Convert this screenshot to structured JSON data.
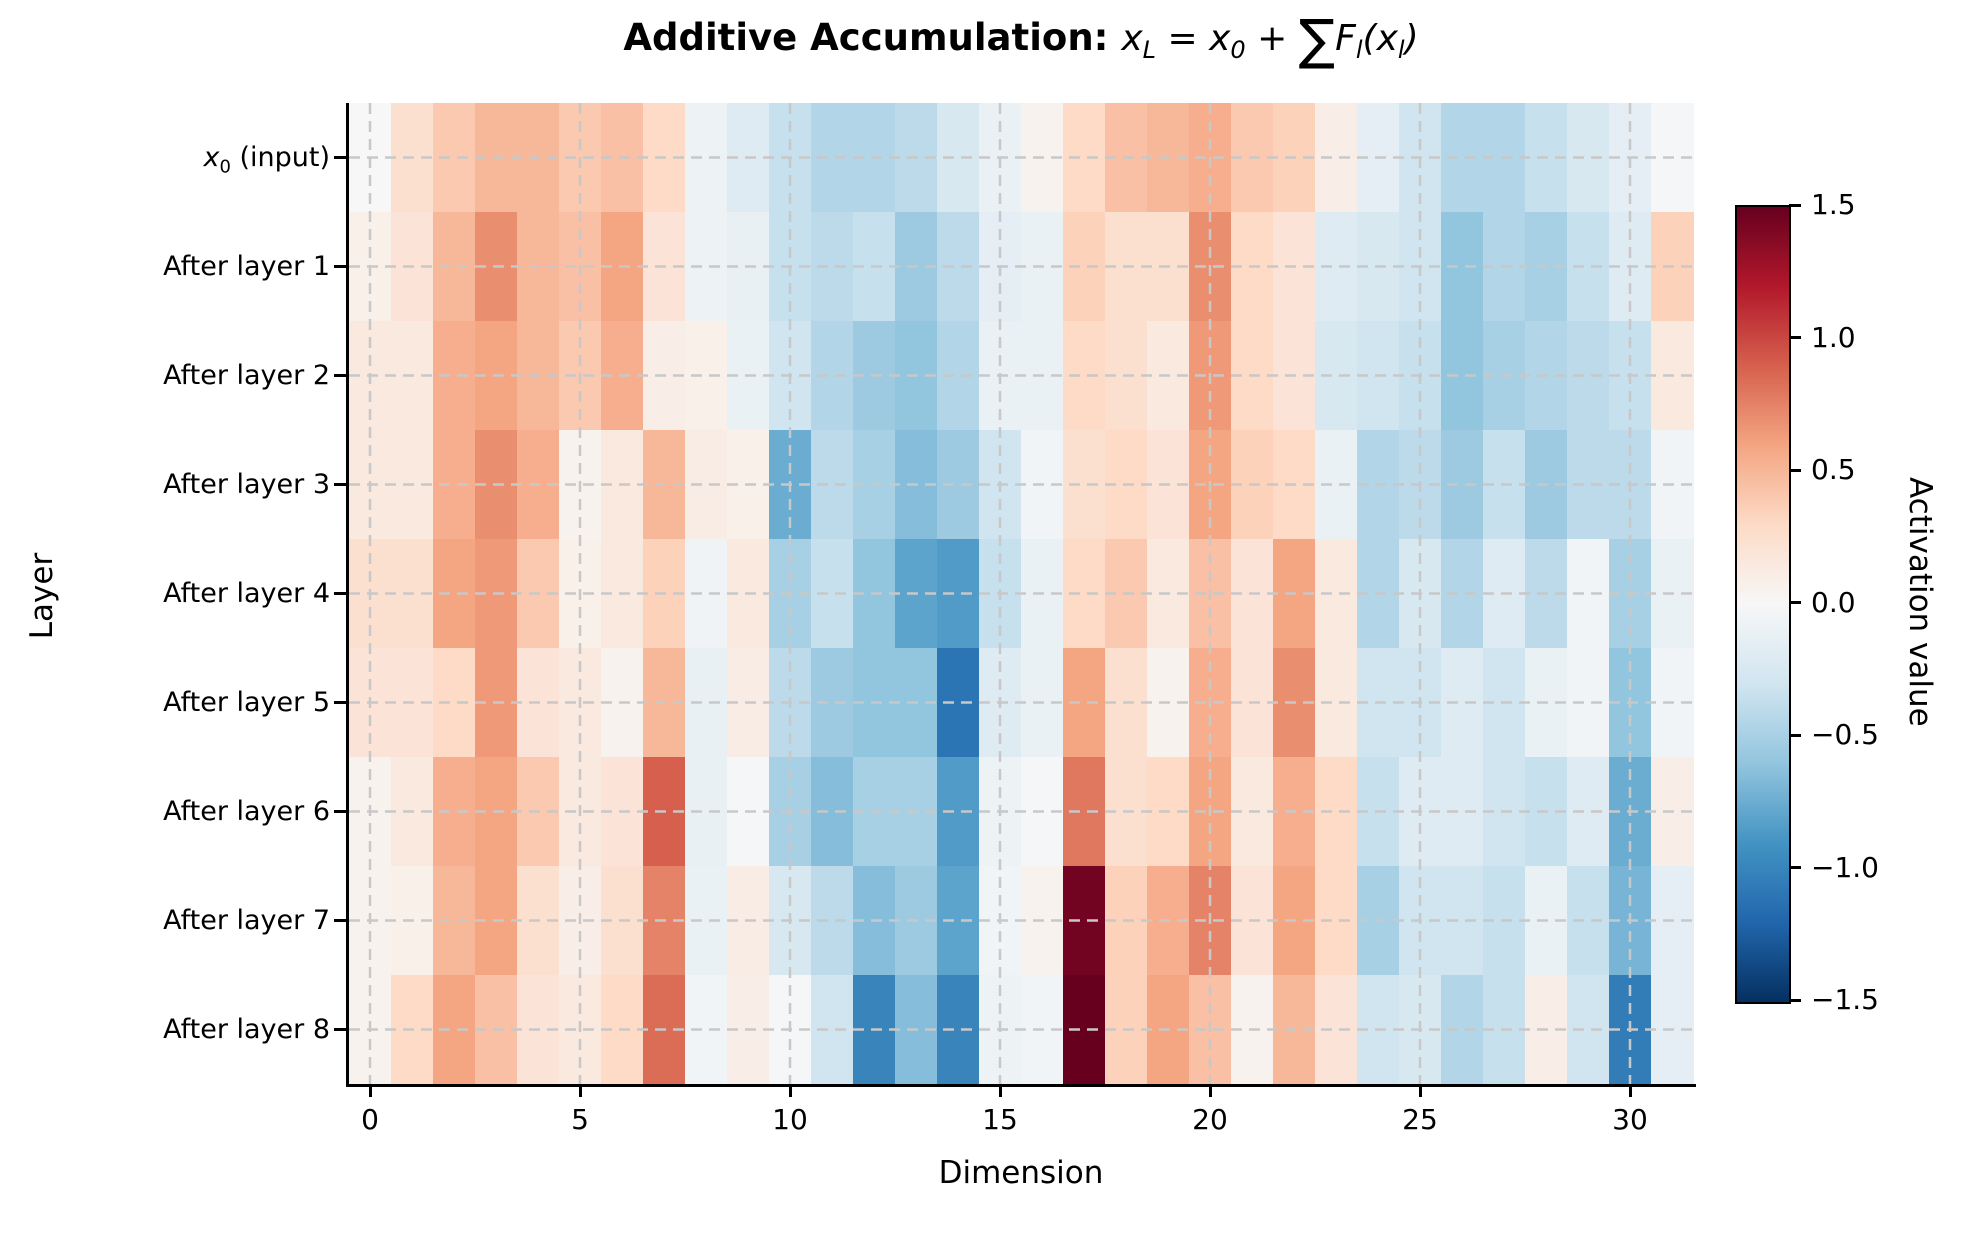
{
  "chart_data": {
    "type": "heatmap",
    "title": "Additive Accumulation: ",
    "title_math_tokens": [
      [
        "x",
        "L"
      ],
      [
        " = ",
        ""
      ],
      [
        "x",
        "0"
      ],
      [
        " + ",
        ""
      ],
      [
        "∑",
        ""
      ],
      [
        "F",
        "l"
      ],
      [
        "(",
        ""
      ],
      [
        "x",
        "l"
      ],
      [
        ")",
        ""
      ]
    ],
    "xlabel": "Dimension",
    "ylabel": "Layer",
    "x_ticks": [
      0,
      5,
      10,
      15,
      20,
      25,
      30
    ],
    "n_dims": 32,
    "x_range": [
      0,
      31
    ],
    "grid": true,
    "vmin": -1.5,
    "vmax": 1.5,
    "rows": [
      {
        "math": "x",
        "sub": "0",
        "text": " (input)"
      },
      {
        "text": "After layer 1"
      },
      {
        "text": "After layer 2"
      },
      {
        "text": "After layer 3"
      },
      {
        "text": "After layer 4"
      },
      {
        "text": "After layer 5"
      },
      {
        "text": "After layer 6"
      },
      {
        "text": "After layer 7"
      },
      {
        "text": "After layer 8"
      }
    ],
    "values": [
      [
        0.0,
        0.25,
        0.4,
        0.5,
        0.5,
        0.4,
        0.45,
        0.3,
        -0.08,
        -0.2,
        -0.35,
        -0.45,
        -0.45,
        -0.4,
        -0.25,
        -0.1,
        0.05,
        0.3,
        0.45,
        0.5,
        0.55,
        0.4,
        0.35,
        0.1,
        -0.15,
        -0.3,
        -0.45,
        -0.45,
        -0.35,
        -0.25,
        -0.15,
        -0.02
      ],
      [
        0.08,
        0.2,
        0.5,
        0.7,
        0.5,
        0.45,
        0.6,
        0.2,
        -0.08,
        -0.12,
        -0.35,
        -0.4,
        -0.35,
        -0.55,
        -0.4,
        -0.15,
        -0.1,
        0.35,
        0.25,
        0.25,
        0.7,
        0.3,
        0.2,
        -0.2,
        -0.25,
        -0.3,
        -0.6,
        -0.45,
        -0.5,
        -0.35,
        -0.2,
        0.35
      ],
      [
        0.15,
        0.15,
        0.55,
        0.6,
        0.5,
        0.4,
        0.55,
        0.1,
        0.08,
        -0.1,
        -0.3,
        -0.45,
        -0.55,
        -0.6,
        -0.45,
        -0.1,
        -0.1,
        0.3,
        0.25,
        0.15,
        0.65,
        0.3,
        0.2,
        -0.25,
        -0.3,
        -0.35,
        -0.6,
        -0.5,
        -0.45,
        -0.4,
        -0.35,
        0.15
      ],
      [
        0.15,
        0.15,
        0.55,
        0.7,
        0.55,
        0.05,
        0.15,
        0.5,
        0.12,
        0.08,
        -0.75,
        -0.4,
        -0.5,
        -0.65,
        -0.55,
        -0.3,
        -0.05,
        0.25,
        0.3,
        0.2,
        0.6,
        0.35,
        0.3,
        -0.1,
        -0.45,
        -0.4,
        -0.55,
        -0.35,
        -0.55,
        -0.4,
        -0.4,
        -0.05
      ],
      [
        0.25,
        0.25,
        0.6,
        0.65,
        0.4,
        0.08,
        0.15,
        0.35,
        -0.06,
        0.15,
        -0.5,
        -0.35,
        -0.6,
        -0.8,
        -0.85,
        -0.35,
        -0.1,
        0.3,
        0.4,
        0.15,
        0.45,
        0.2,
        0.6,
        0.15,
        -0.45,
        -0.25,
        -0.45,
        -0.2,
        -0.4,
        -0.05,
        -0.5,
        -0.1
      ],
      [
        0.2,
        0.2,
        0.3,
        0.65,
        0.2,
        0.15,
        0.05,
        0.5,
        -0.12,
        0.12,
        -0.4,
        -0.55,
        -0.6,
        -0.6,
        -1.1,
        -0.2,
        -0.1,
        0.6,
        0.25,
        0.05,
        0.55,
        0.2,
        0.7,
        0.15,
        -0.3,
        -0.3,
        -0.2,
        -0.3,
        -0.1,
        -0.05,
        -0.6,
        -0.05
      ],
      [
        0.05,
        0.15,
        0.55,
        0.6,
        0.4,
        0.15,
        0.2,
        0.9,
        -0.12,
        -0.02,
        -0.5,
        -0.65,
        -0.5,
        -0.5,
        -0.85,
        -0.08,
        -0.02,
        0.8,
        0.25,
        0.3,
        0.6,
        0.15,
        0.55,
        0.3,
        -0.35,
        -0.2,
        -0.2,
        -0.3,
        -0.35,
        -0.2,
        -0.75,
        0.1
      ],
      [
        0.05,
        0.08,
        0.5,
        0.6,
        0.25,
        0.1,
        0.25,
        0.75,
        -0.1,
        0.12,
        -0.25,
        -0.4,
        -0.65,
        -0.55,
        -0.8,
        -0.05,
        0.05,
        1.45,
        0.35,
        0.55,
        0.75,
        0.2,
        0.6,
        0.3,
        -0.5,
        -0.3,
        -0.3,
        -0.35,
        -0.1,
        -0.35,
        -0.7,
        -0.15
      ],
      [
        0.05,
        0.3,
        0.6,
        0.45,
        0.2,
        0.15,
        0.3,
        0.85,
        -0.05,
        0.1,
        -0.02,
        -0.3,
        -1.0,
        -0.65,
        -1.0,
        -0.08,
        -0.05,
        1.5,
        0.35,
        0.6,
        0.45,
        0.05,
        0.5,
        0.2,
        -0.3,
        -0.25,
        -0.45,
        -0.35,
        0.1,
        -0.3,
        -1.05,
        -0.15
      ]
    ],
    "colorbar": {
      "label": "Activation value",
      "ticks": [
        "1.5",
        "1.0",
        "0.5",
        "0.0",
        "−0.5",
        "−1.0",
        "−1.5"
      ],
      "tick_values": [
        1.5,
        1.0,
        0.5,
        0.0,
        -0.5,
        -1.0,
        -1.5
      ]
    },
    "colormap": {
      "name": "RdBu_r",
      "stops": [
        "#053061",
        "#2166ac",
        "#4393c3",
        "#92c5de",
        "#d1e5f0",
        "#f7f7f7",
        "#fddbc7",
        "#f4a582",
        "#d6604d",
        "#b2182b",
        "#67001f"
      ]
    },
    "grid_color": "#c8c8c8",
    "spine_color": "#000000"
  }
}
